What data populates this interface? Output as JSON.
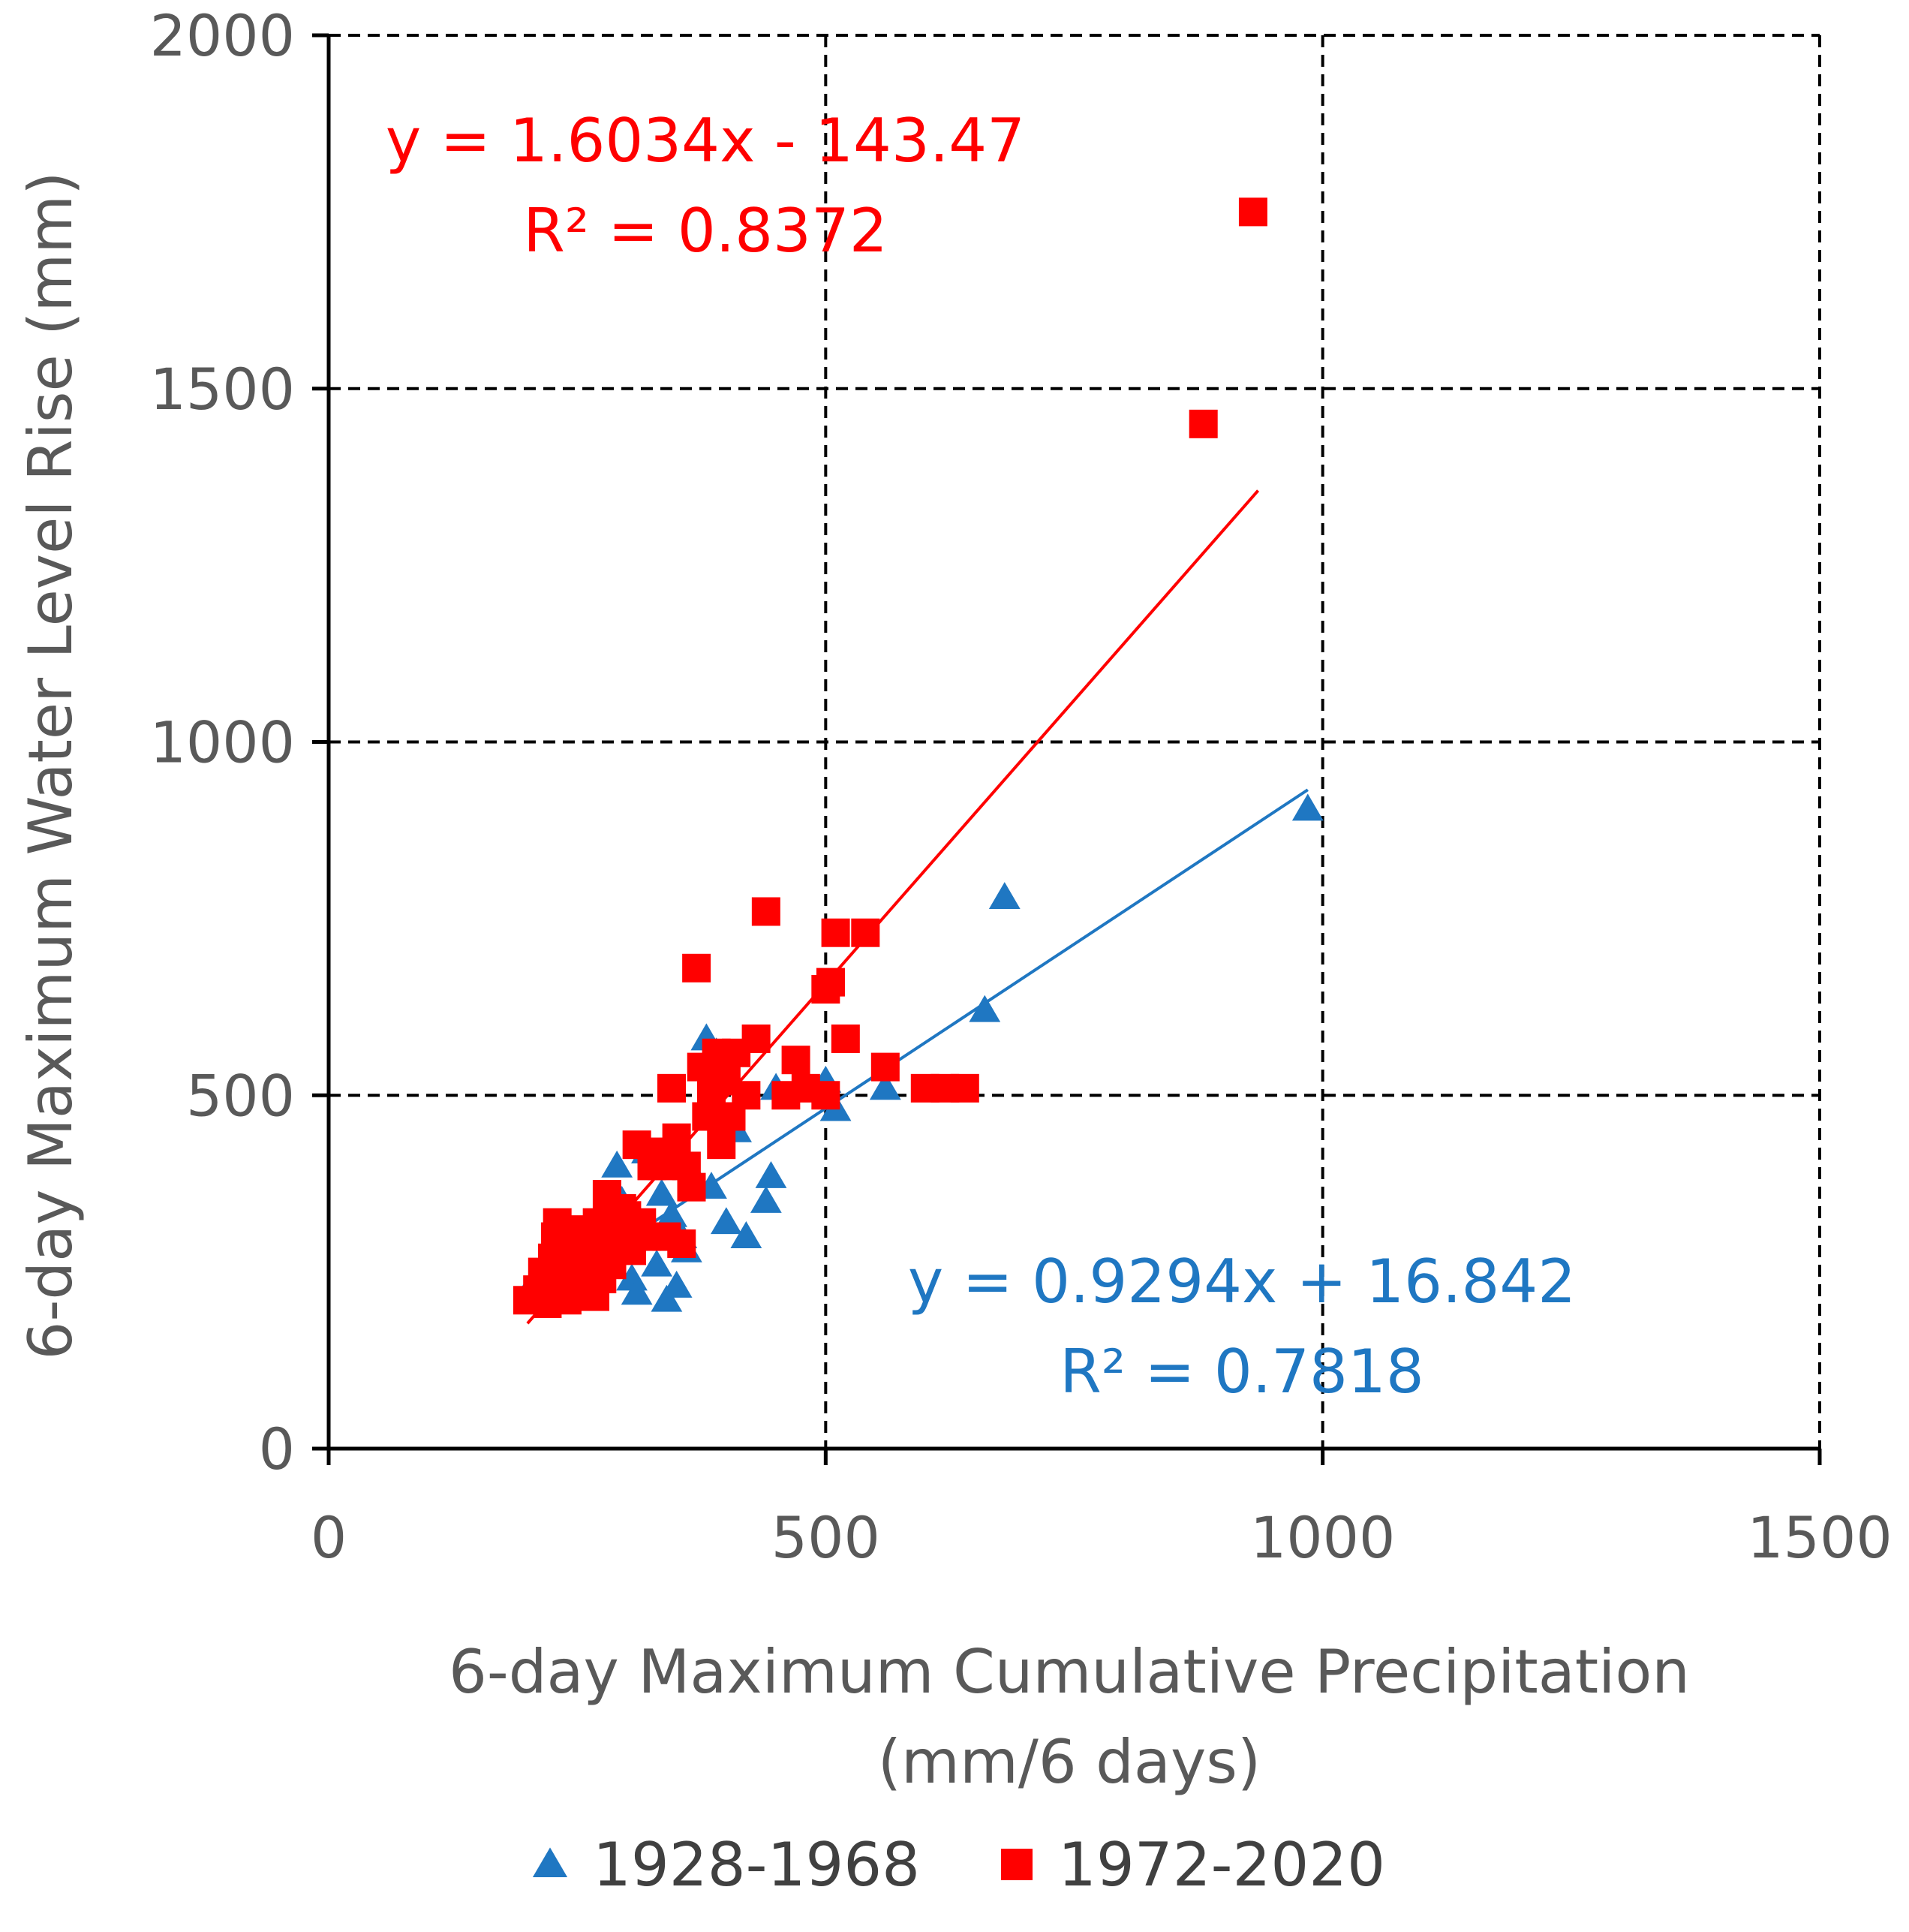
{
  "chart_data": {
    "type": "scatter",
    "xlabel": [
      "6-day Maximum Cumulative Precipitation",
      "(mm/6 days)"
    ],
    "ylabel": "6-day Maximum Water Level Rise (mm)",
    "xlim": [
      0,
      1500
    ],
    "ylim": [
      0,
      2000
    ],
    "xticks": [
      0,
      500,
      1000,
      1500
    ],
    "yticks": [
      0,
      500,
      1000,
      1500,
      2000
    ],
    "grid": true,
    "legend_position": "bottom",
    "series": [
      {
        "name": "1928-1968",
        "marker": "triangle",
        "color": "#1f77c2",
        "points": [
          [
            205,
            215
          ],
          [
            210,
            245
          ],
          [
            215,
            230
          ],
          [
            220,
            210
          ],
          [
            225,
            250
          ],
          [
            230,
            270
          ],
          [
            235,
            240
          ],
          [
            240,
            220
          ],
          [
            245,
            285
          ],
          [
            250,
            260
          ],
          [
            255,
            300
          ],
          [
            260,
            275
          ],
          [
            265,
            230
          ],
          [
            270,
            310
          ],
          [
            275,
            290
          ],
          [
            280,
            330
          ],
          [
            285,
            260
          ],
          [
            290,
            400
          ],
          [
            295,
            350
          ],
          [
            300,
            280
          ],
          [
            305,
            240
          ],
          [
            310,
            220
          ],
          [
            320,
            420
          ],
          [
            325,
            300
          ],
          [
            330,
            260
          ],
          [
            335,
            360
          ],
          [
            340,
            210
          ],
          [
            345,
            330
          ],
          [
            350,
            230
          ],
          [
            355,
            300
          ],
          [
            360,
            280
          ],
          [
            370,
            380
          ],
          [
            380,
            580
          ],
          [
            385,
            370
          ],
          [
            390,
            560
          ],
          [
            400,
            320
          ],
          [
            410,
            450
          ],
          [
            420,
            300
          ],
          [
            440,
            350
          ],
          [
            445,
            385
          ],
          [
            450,
            510
          ],
          [
            500,
            520
          ],
          [
            510,
            480
          ],
          [
            560,
            510
          ],
          [
            660,
            620
          ],
          [
            680,
            780
          ],
          [
            985,
            905
          ]
        ],
        "trendline": {
          "equation": "y = 0.9294x + 16.842",
          "r2": "R² = 0.7818",
          "slope": 0.9294,
          "intercept": 16.842,
          "x_range": [
            205,
            985
          ]
        }
      },
      {
        "name": "1972-2020",
        "marker": "square",
        "color": "#ff0000",
        "points": [
          [
            200,
            210
          ],
          [
            210,
            225
          ],
          [
            215,
            250
          ],
          [
            220,
            205
          ],
          [
            225,
            270
          ],
          [
            228,
            300
          ],
          [
            230,
            320
          ],
          [
            235,
            240
          ],
          [
            238,
            290
          ],
          [
            240,
            210
          ],
          [
            245,
            260
          ],
          [
            248,
            280
          ],
          [
            250,
            310
          ],
          [
            255,
            230
          ],
          [
            258,
            250
          ],
          [
            260,
            300
          ],
          [
            265,
            280
          ],
          [
            268,
            215
          ],
          [
            270,
            320
          ],
          [
            275,
            240
          ],
          [
            278,
            290
          ],
          [
            280,
            360
          ],
          [
            285,
            260
          ],
          [
            290,
            300
          ],
          [
            295,
            340
          ],
          [
            300,
            330
          ],
          [
            305,
            280
          ],
          [
            310,
            430
          ],
          [
            315,
            320
          ],
          [
            320,
            300
          ],
          [
            325,
            400
          ],
          [
            330,
            420
          ],
          [
            335,
            400
          ],
          [
            340,
            300
          ],
          [
            345,
            510
          ],
          [
            350,
            440
          ],
          [
            355,
            290
          ],
          [
            360,
            400
          ],
          [
            365,
            370
          ],
          [
            370,
            680
          ],
          [
            375,
            540
          ],
          [
            380,
            470
          ],
          [
            385,
            510
          ],
          [
            390,
            560
          ],
          [
            395,
            430
          ],
          [
            400,
            520
          ],
          [
            405,
            470
          ],
          [
            410,
            560
          ],
          [
            420,
            500
          ],
          [
            430,
            580
          ],
          [
            440,
            760
          ],
          [
            460,
            500
          ],
          [
            470,
            550
          ],
          [
            480,
            510
          ],
          [
            500,
            500
          ],
          [
            500,
            650
          ],
          [
            505,
            660
          ],
          [
            510,
            730
          ],
          [
            520,
            580
          ],
          [
            540,
            730
          ],
          [
            560,
            540
          ],
          [
            600,
            510
          ],
          [
            620,
            510
          ],
          [
            640,
            510
          ],
          [
            880,
            1450
          ],
          [
            930,
            1750
          ]
        ],
        "trendline": {
          "equation": "y = 1.6034x - 143.47",
          "r2": "R² = 0.8372",
          "slope": 1.6034,
          "intercept": -143.47,
          "x_range": [
            200,
            935
          ]
        }
      }
    ]
  }
}
